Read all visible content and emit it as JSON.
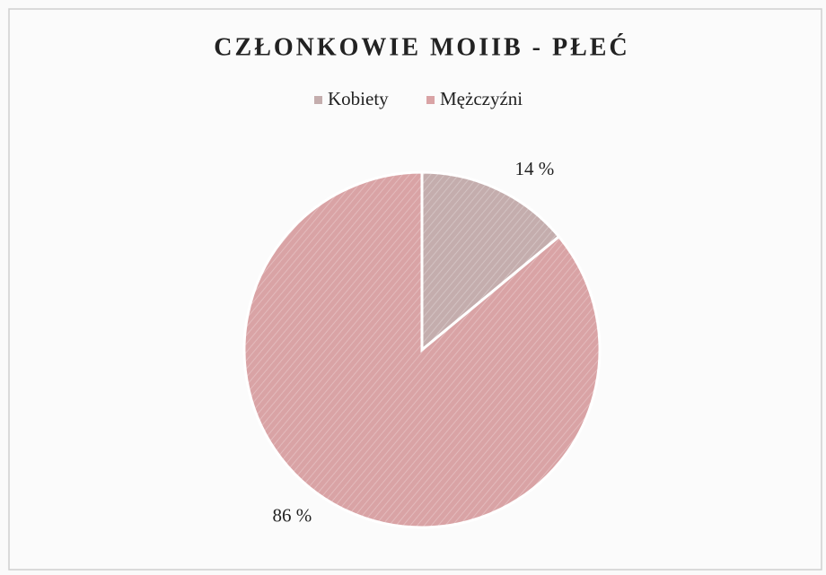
{
  "chart_data": {
    "type": "pie",
    "title": "CZŁONKOWIE MOIIB - PŁEĆ",
    "categories": [
      "Kobiety",
      "Mężczyźni"
    ],
    "values": [
      14,
      86
    ],
    "value_labels": [
      "14 %",
      "86 %"
    ],
    "colors": [
      "#c4adad",
      "#d9a3a5"
    ],
    "legend": "top"
  }
}
